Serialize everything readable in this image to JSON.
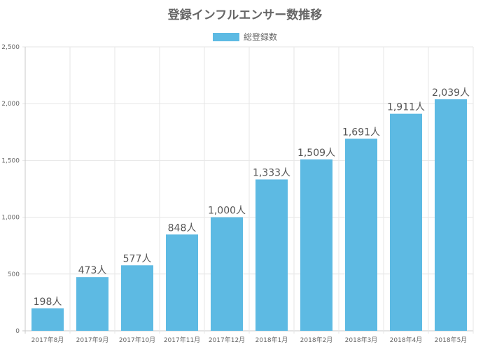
{
  "colors": {
    "bar": "#5dbae3",
    "grid": "#e6e6e6",
    "axis": "#c8c8c8",
    "text": "#666666"
  },
  "chart_data": {
    "type": "bar",
    "title": "登録インフルエンサー数推移",
    "categories": [
      "2017年8月",
      "2017年9月",
      "2017年10月",
      "2017年11月",
      "2017年12月",
      "2018年1月",
      "2018年2月",
      "2018年3月",
      "2018年4月",
      "2018年5月"
    ],
    "series": [
      {
        "name": "総登録数",
        "values": [
          198,
          473,
          577,
          848,
          1000,
          1333,
          1509,
          1691,
          1911,
          2039
        ],
        "data_labels": [
          "198人",
          "473人",
          "577人",
          "848人",
          "1,000人",
          "1,333人",
          "1,509人",
          "1,691人",
          "1,911人",
          "2,039人"
        ]
      }
    ],
    "y_ticks": [
      "0",
      "500",
      "1,000",
      "1,500",
      "2,000",
      "2,500"
    ],
    "ylim": [
      0,
      2500
    ],
    "xlabel": "",
    "ylabel": "",
    "grid": true,
    "legend_position": "top-center"
  }
}
